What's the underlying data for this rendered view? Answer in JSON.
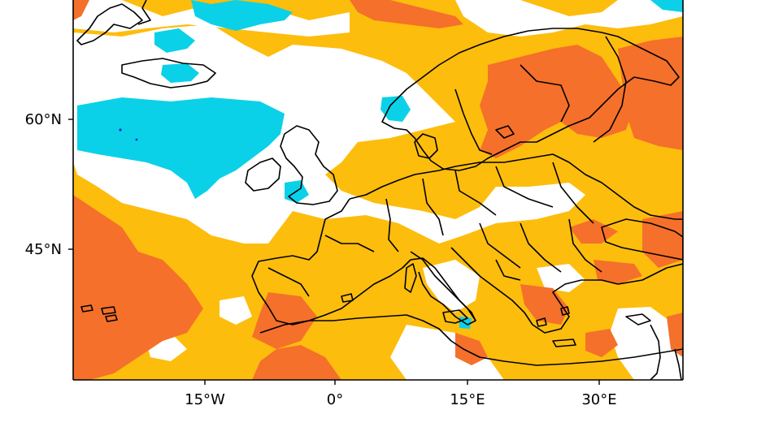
{
  "map": {
    "colors": {
      "background": "#ffffff",
      "orange": "#fdbd0d",
      "dark_orange": "#f5702a",
      "cyan": "#0ad1e8",
      "dark_blue": "#1a2bc8",
      "coast": "#000000",
      "frame": "#000000"
    },
    "y_axis_labels": [
      "60°N",
      "45°N"
    ],
    "x_axis_labels": [
      "15°W",
      "0°",
      "15°E",
      "30°E"
    ]
  }
}
